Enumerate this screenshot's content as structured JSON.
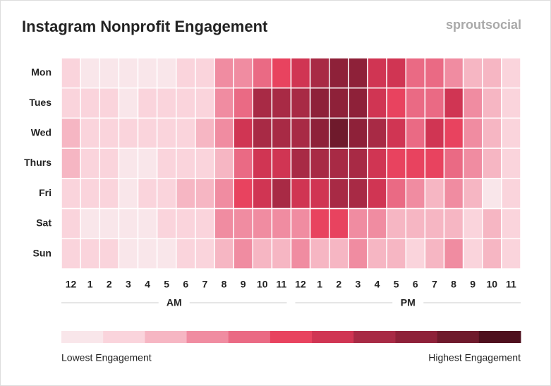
{
  "chart_data": {
    "type": "heatmap",
    "title": "Instagram Nonprofit Engagement",
    "brand": "sproutsocial",
    "x_categories": [
      "12",
      "1",
      "2",
      "3",
      "4",
      "5",
      "6",
      "7",
      "8",
      "9",
      "10",
      "11",
      "12",
      "1",
      "2",
      "3",
      "4",
      "5",
      "6",
      "7",
      "8",
      "9",
      "10",
      "11"
    ],
    "x_groups": [
      "AM",
      "PM"
    ],
    "y_categories": [
      "Mon",
      "Tues",
      "Wed",
      "Thurs",
      "Fri",
      "Sat",
      "Sun"
    ],
    "values": [
      [
        1,
        0,
        0,
        0,
        0,
        0,
        1,
        1,
        3,
        3,
        4,
        5,
        6,
        7,
        8,
        8,
        6,
        6,
        4,
        4,
        3,
        2,
        2,
        1
      ],
      [
        1,
        1,
        1,
        0,
        1,
        1,
        1,
        1,
        3,
        4,
        7,
        7,
        7,
        8,
        8,
        8,
        6,
        5,
        4,
        4,
        6,
        3,
        2,
        1
      ],
      [
        2,
        1,
        1,
        1,
        1,
        1,
        1,
        2,
        3,
        6,
        7,
        7,
        7,
        8,
        9,
        8,
        7,
        6,
        4,
        6,
        5,
        3,
        2,
        1
      ],
      [
        2,
        1,
        1,
        0,
        0,
        1,
        1,
        1,
        2,
        4,
        6,
        6,
        7,
        7,
        7,
        7,
        6,
        5,
        5,
        5,
        4,
        3,
        2,
        1
      ],
      [
        1,
        1,
        1,
        0,
        1,
        1,
        2,
        2,
        3,
        5,
        6,
        7,
        6,
        6,
        7,
        7,
        6,
        4,
        3,
        2,
        3,
        2,
        0,
        1
      ],
      [
        1,
        0,
        0,
        0,
        0,
        1,
        1,
        1,
        3,
        3,
        3,
        3,
        3,
        5,
        5,
        3,
        3,
        2,
        2,
        2,
        2,
        1,
        2,
        1
      ],
      [
        1,
        1,
        1,
        0,
        0,
        0,
        1,
        1,
        2,
        3,
        2,
        2,
        3,
        2,
        2,
        3,
        2,
        2,
        1,
        2,
        3,
        1,
        2,
        1
      ]
    ],
    "colors": [
      "#f9e6ea",
      "#fad4dc",
      "#f6b6c3",
      "#f08ca1",
      "#ea6a84",
      "#e8435f",
      "#d03553",
      "#a82a45",
      "#8e2139",
      "#6f1a2c",
      "#4e0f1d"
    ],
    "legend_low": "Lowest Engagement",
    "legend_high": "Highest Engagement"
  }
}
